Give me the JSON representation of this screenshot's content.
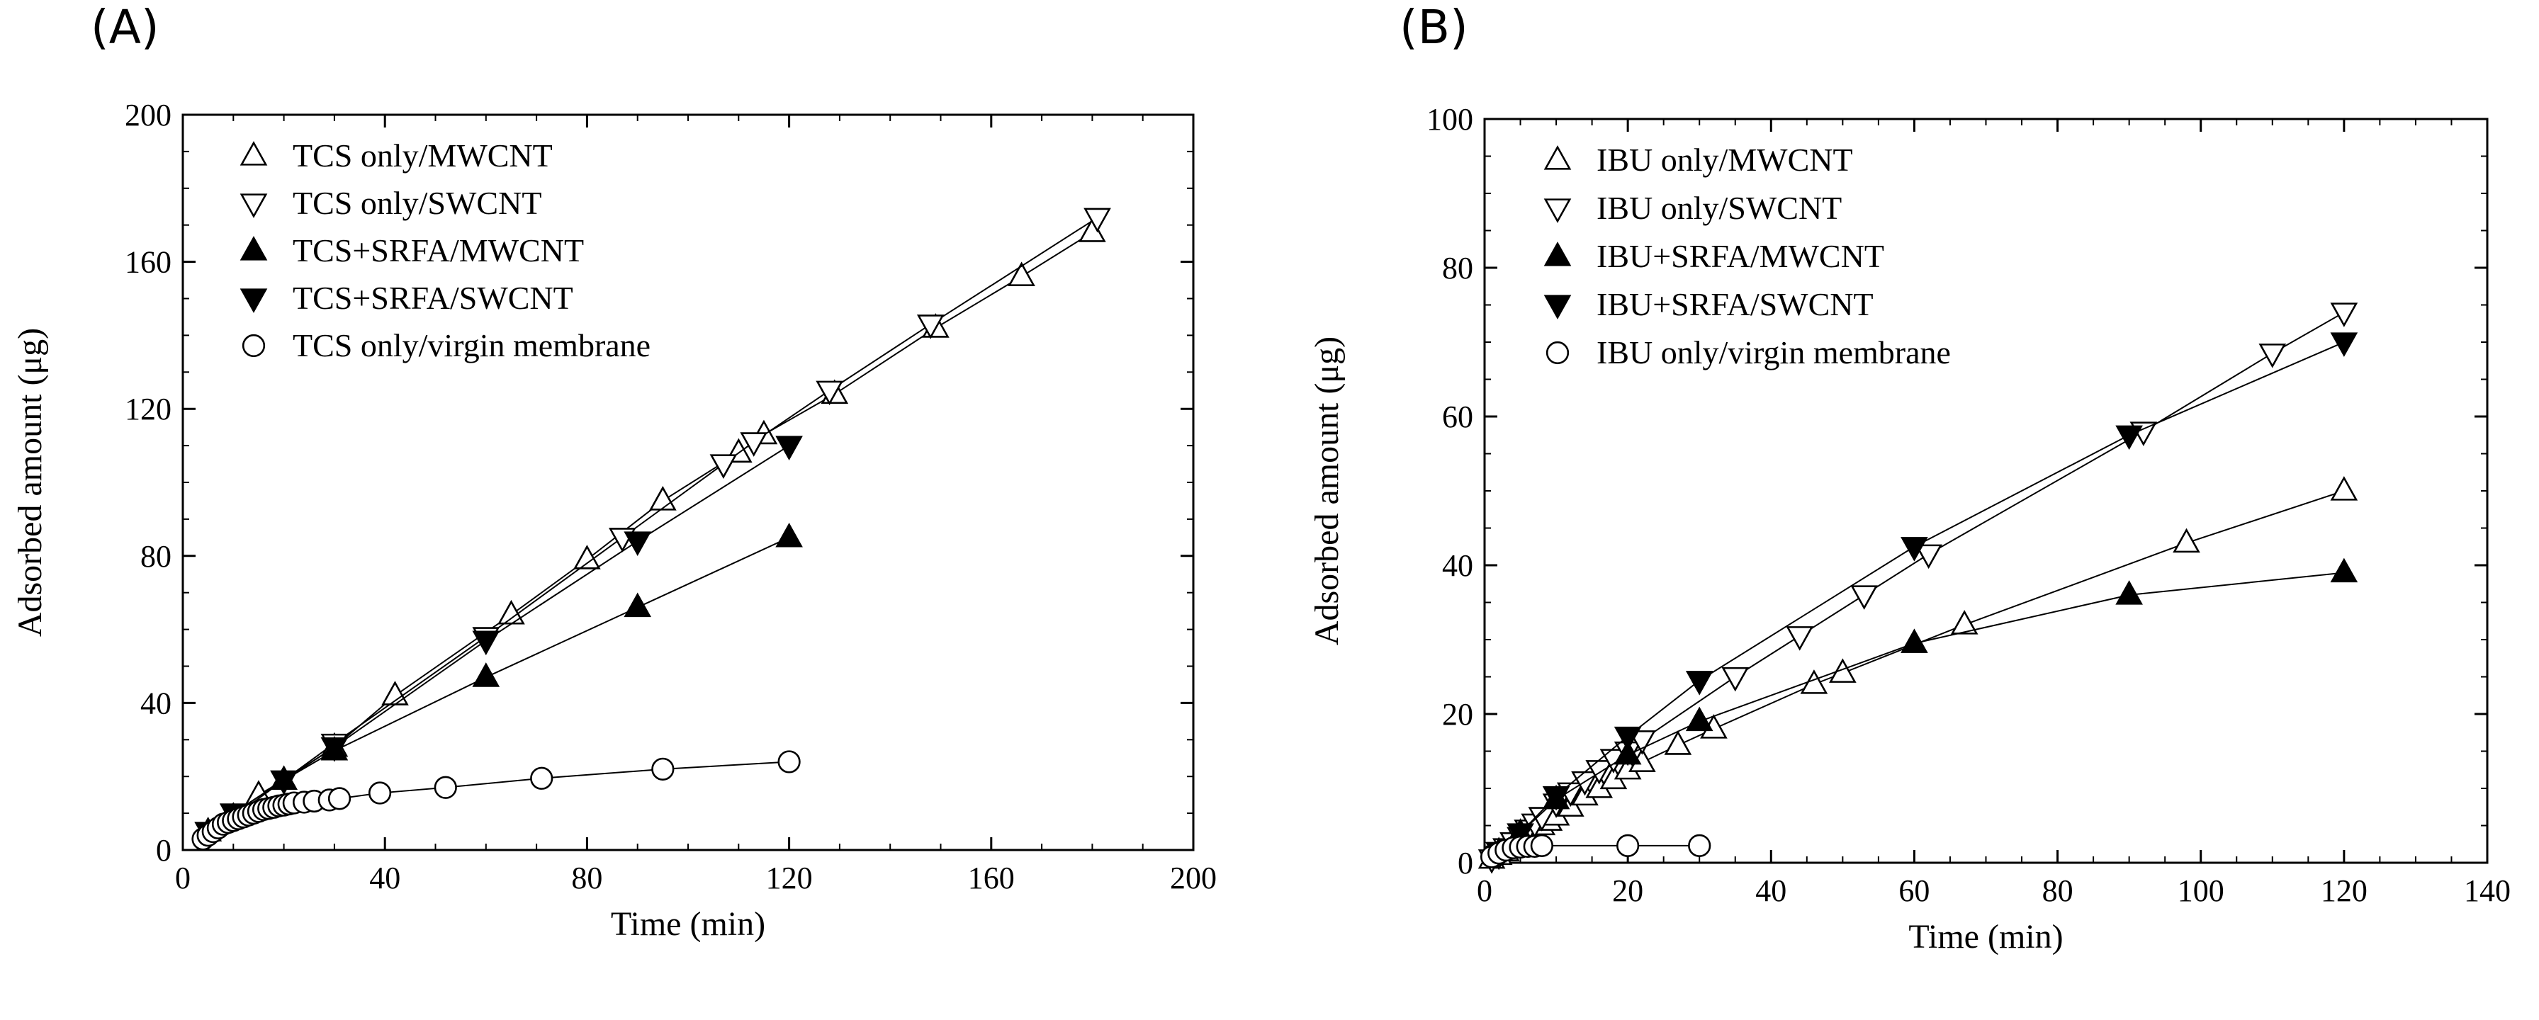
{
  "panels": [
    {
      "label": "(A)",
      "chart_data": {
        "type": "scatter",
        "title": "",
        "xlabel": "Time (min)",
        "ylabel": "Adsorbed amount (μg)",
        "xlim": [
          0,
          200
        ],
        "ylim": [
          0,
          200
        ],
        "xticks": [
          0,
          40,
          80,
          120,
          160,
          200
        ],
        "yticks": [
          0,
          40,
          80,
          120,
          160,
          200
        ],
        "legend_position": "top-left",
        "series": [
          {
            "name": "TCS only/MWCNT",
            "marker": "triangle-up-open",
            "x": [
              5,
              10,
              15,
              20,
              30,
              42,
              65,
              80,
              95,
              110,
              115,
              129,
              149,
              166,
              180
            ],
            "y": [
              5,
              9,
              15,
              19,
              28,
              42,
              64,
              79,
              95,
              108,
              113,
              124,
              142,
              156,
              168
            ]
          },
          {
            "name": "TCS only/SWCNT",
            "marker": "triangle-down-open",
            "x": [
              5,
              10,
              20,
              30,
              60,
              87,
              107,
              113,
              128,
              148,
              181
            ],
            "y": [
              5,
              10,
              19,
              29,
              58,
              85,
              105,
              111,
              125,
              143,
              172
            ]
          },
          {
            "name": "TCS+SRFA/MWCNT",
            "marker": "triangle-up-filled",
            "x": [
              5,
              10,
              20,
              30,
              60,
              90,
              120
            ],
            "y": [
              5,
              9,
              19,
              27,
              47,
              66,
              85
            ]
          },
          {
            "name": "TCS+SRFA/SWCNT",
            "marker": "triangle-down-filled",
            "x": [
              5,
              10,
              20,
              30,
              60,
              90,
              120
            ],
            "y": [
              5,
              10,
              19,
              28,
              57,
              84,
              110
            ]
          },
          {
            "name": "TCS only/virgin membrane",
            "marker": "circle-open",
            "x": [
              4,
              5,
              6,
              7,
              8,
              9,
              10,
              11,
              12,
              13,
              14,
              15,
              16,
              17,
              18,
              19,
              20,
              21,
              22,
              24,
              26,
              29,
              31,
              39,
              52,
              71,
              95,
              120
            ],
            "y": [
              3,
              4,
              5,
              6,
              7,
              7.5,
              8,
              8.5,
              9,
              9.5,
              10,
              10.5,
              11,
              11.3,
              11.6,
              12,
              12.2,
              12.5,
              12.8,
              13,
              13.3,
              13.6,
              14,
              15.5,
              17,
              19.5,
              22,
              24
            ]
          }
        ]
      }
    },
    {
      "label": "(B)",
      "chart_data": {
        "type": "scatter",
        "title": "",
        "xlabel": "Time (min)",
        "ylabel": "Adsorbed amount (μg)",
        "xlim": [
          0,
          140
        ],
        "ylim": [
          0,
          100
        ],
        "xticks": [
          0,
          20,
          40,
          60,
          80,
          100,
          120,
          140
        ],
        "yticks": [
          0,
          20,
          40,
          60,
          80,
          100
        ],
        "legend_position": "top-left",
        "series": [
          {
            "name": "IBU only/MWCNT",
            "marker": "triangle-up-open",
            "x": [
              1,
              2,
              3,
              4,
              5,
              6,
              7,
              8,
              9,
              10,
              12,
              14,
              16,
              18,
              20,
              22,
              27,
              32,
              46,
              50,
              67,
              98,
              120
            ],
            "y": [
              0.5,
              1,
              1.5,
              2.2,
              3,
              3.6,
              4.3,
              5,
              5.6,
              6.3,
              7.5,
              9,
              10,
              11.2,
              12.5,
              13.5,
              15.8,
              18,
              24,
              25.5,
              32,
              43,
              50
            ]
          },
          {
            "name": "IBU only/SWCNT",
            "marker": "triangle-down-open",
            "x": [
              1,
              2,
              3,
              4,
              5,
              6,
              7,
              8,
              10,
              12,
              14,
              16,
              18,
              20,
              22,
              35,
              44,
              53,
              62,
              92,
              110,
              120
            ],
            "y": [
              0.5,
              1,
              2,
              2.8,
              3.5,
              4.5,
              5.3,
              6.2,
              8,
              9.5,
              11,
              12.5,
              14,
              15,
              16.5,
              25,
              30.5,
              36,
              41.5,
              58,
              68.5,
              74
            ]
          },
          {
            "name": "IBU+SRFA/MWCNT",
            "marker": "triangle-up-filled",
            "x": [
              2,
              5,
              10,
              20,
              30,
              60,
              90,
              120
            ],
            "y": [
              1.5,
              4,
              8.5,
              14.5,
              19,
              29.5,
              36,
              39
            ]
          },
          {
            "name": "IBU+SRFA/SWCNT",
            "marker": "triangle-down-filled",
            "x": [
              2,
              5,
              10,
              20,
              30,
              60,
              90,
              120
            ],
            "y": [
              1.5,
              4,
              9,
              17,
              24.5,
              42.5,
              57.5,
              70
            ]
          },
          {
            "name": "IBU only/virgin membrane",
            "marker": "circle-open",
            "x": [
              1,
              2,
              3,
              4,
              5,
              6,
              7,
              8,
              20,
              30
            ],
            "y": [
              0.8,
              1.3,
              1.7,
              2,
              2.1,
              2.2,
              2.2,
              2.3,
              2.3,
              2.3
            ]
          }
        ]
      }
    }
  ]
}
